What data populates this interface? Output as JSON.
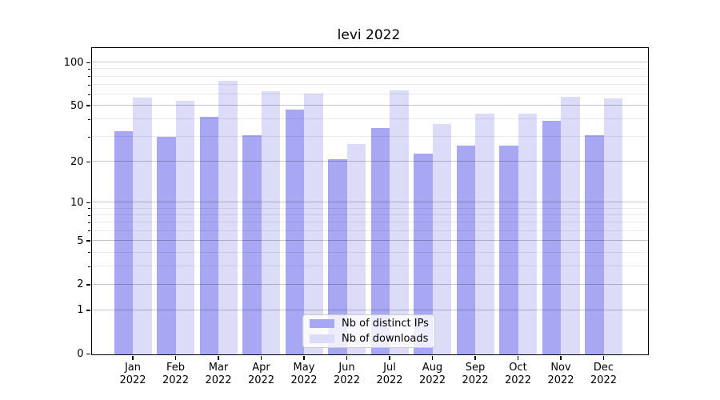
{
  "title": "levi 2022",
  "chart_data": {
    "type": "bar",
    "title": "levi 2022",
    "categories": [
      "Jan 2022",
      "Feb 2022",
      "Mar 2022",
      "Apr 2022",
      "May 2022",
      "Jun 2022",
      "Jul 2022",
      "Aug 2022",
      "Sep 2022",
      "Oct 2022",
      "Nov 2022",
      "Dec 2022"
    ],
    "series": [
      {
        "name": "Nb of distinct IPs",
        "color": "#a7a7f3",
        "values": [
          33,
          30,
          42,
          31,
          47,
          21,
          35,
          23,
          26,
          26,
          39,
          31
        ]
      },
      {
        "name": "Nb of downloads",
        "color": "#dcdcf8",
        "values": [
          57,
          54,
          75,
          63,
          61,
          27,
          64,
          37,
          44,
          44,
          58,
          56
        ]
      }
    ],
    "xlabel": "",
    "ylabel": "",
    "yscale": "log1p",
    "ylim": [
      0,
      126
    ],
    "y_tick_values": [
      0,
      1,
      2,
      5,
      10,
      20,
      50,
      100
    ],
    "y_tick_labels": [
      "0",
      "1",
      "2",
      "5",
      "10",
      "20",
      "50",
      "100"
    ],
    "y_minor_gridlines": [
      3,
      4,
      6,
      7,
      8,
      9,
      30,
      40,
      60,
      70,
      80,
      90
    ],
    "grid": true,
    "legend_position": "lower center"
  }
}
